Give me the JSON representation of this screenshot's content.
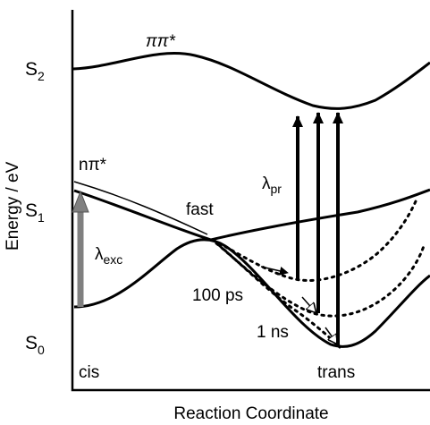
{
  "axes": {
    "y_label": "Energy / eV",
    "x_label": "Reaction Coordinate"
  },
  "states": {
    "s2": {
      "base": "S",
      "sub": "2"
    },
    "s1": {
      "base": "S",
      "sub": "1"
    },
    "s0": {
      "base": "S",
      "sub": "0"
    }
  },
  "curve_labels": {
    "pipi": "ππ*",
    "npi": "nπ*"
  },
  "annotations": {
    "fast": "fast",
    "t100ps": "100 ps",
    "t1ns": "1 ns",
    "cis": "cis",
    "trans": "trans"
  },
  "wavelengths": {
    "excitation": {
      "base": "λ",
      "sub": "exc"
    },
    "probe": {
      "base": "λ",
      "sub": "pr"
    }
  },
  "colors": {
    "line": "#000000",
    "excitation_arrow": "#808080"
  }
}
